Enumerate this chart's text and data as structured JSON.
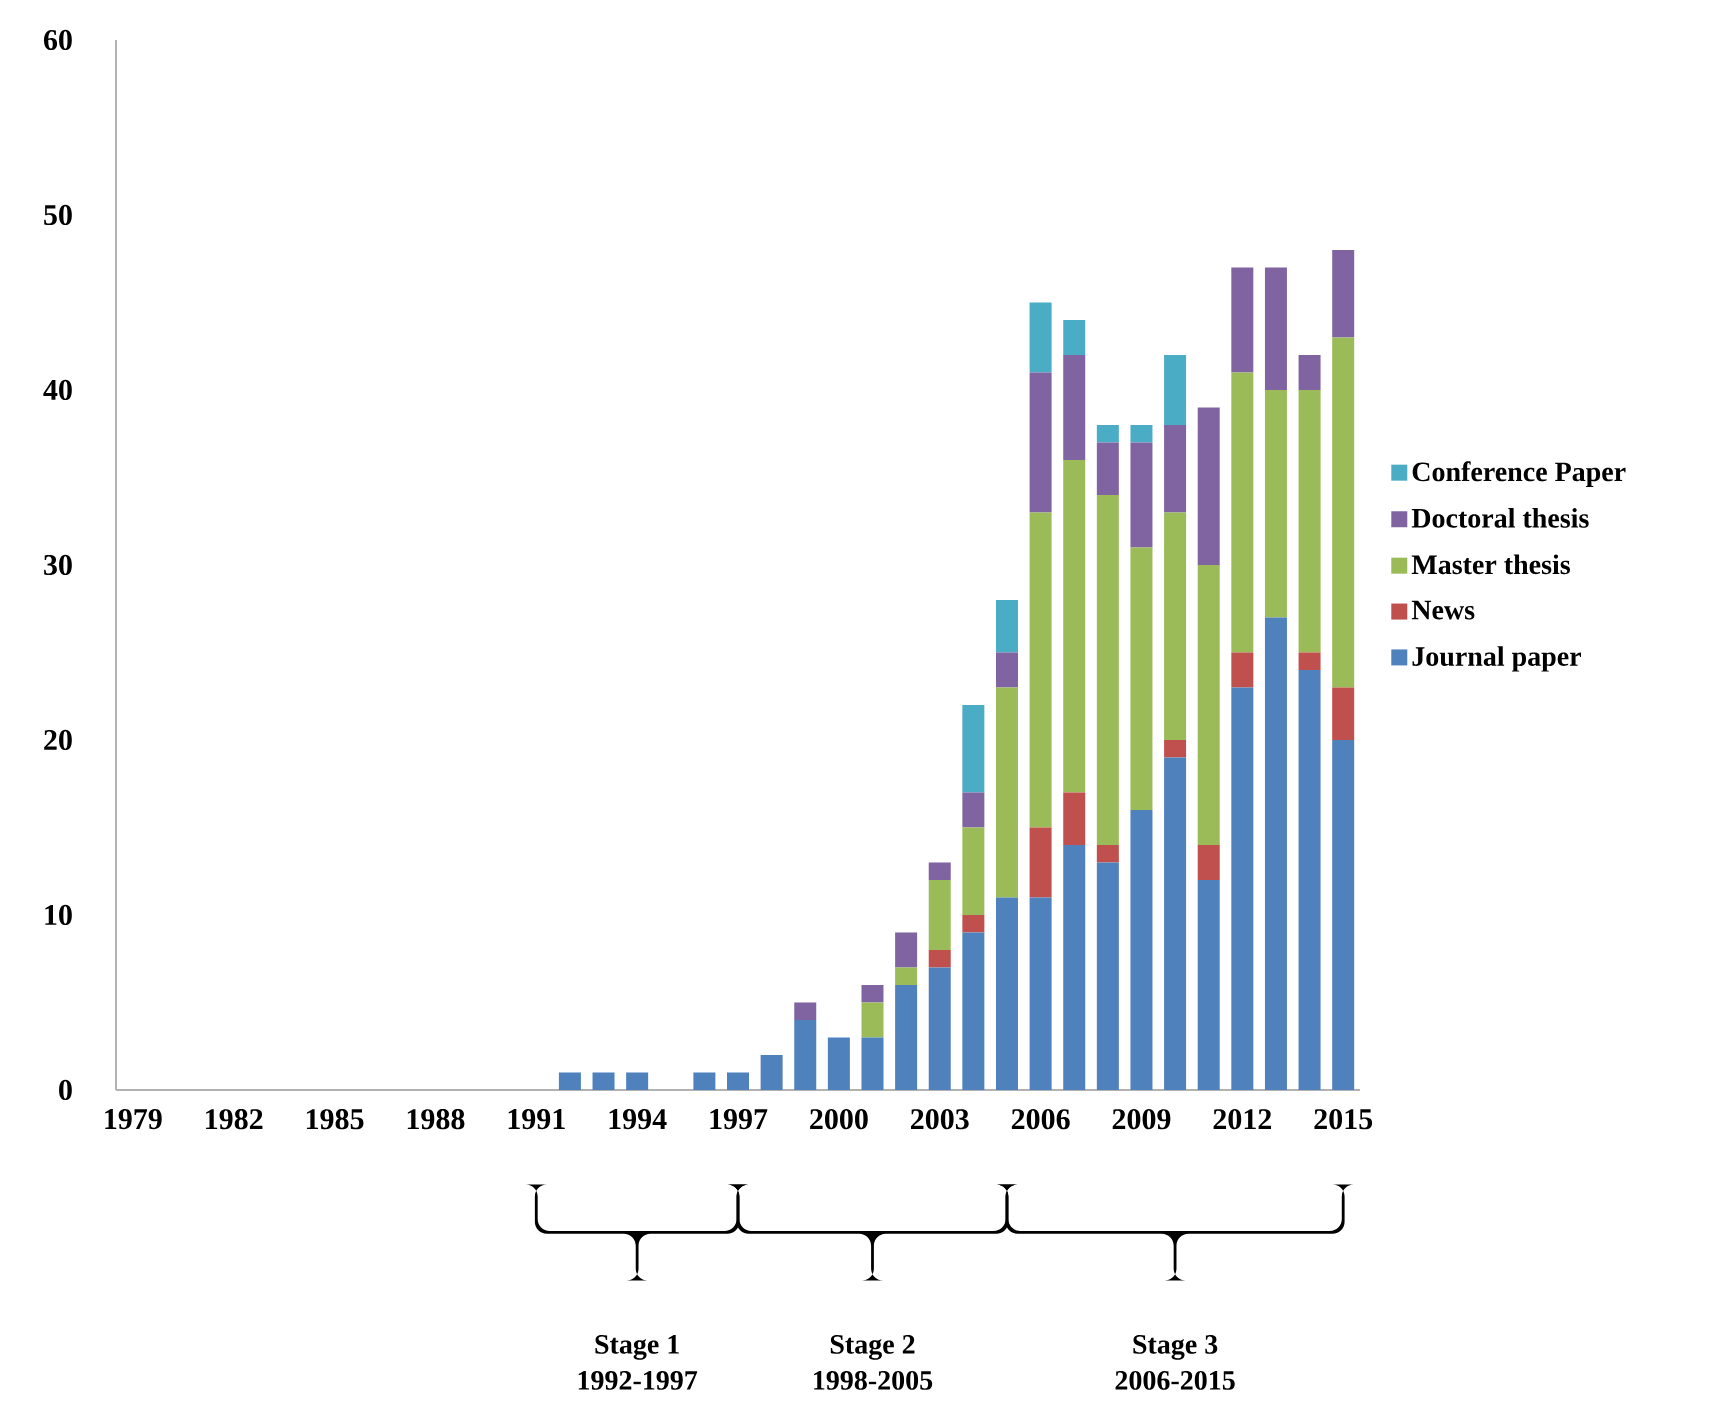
{
  "chart_data": {
    "type": "bar",
    "stacked": true,
    "categories": [
      "1979",
      null,
      null,
      "1982",
      null,
      null,
      "1985",
      null,
      null,
      "1988",
      null,
      null,
      "1991",
      null,
      null,
      "1994",
      null,
      null,
      "1997",
      null,
      null,
      "2000",
      null,
      null,
      "2003",
      null,
      null,
      "2006",
      null,
      null,
      "2009",
      null,
      null,
      "2012",
      null,
      null,
      "2015"
    ],
    "series": [
      {
        "name": "Journal paper",
        "color": "#4f81bd",
        "values": [
          0,
          0,
          0,
          0,
          0,
          0,
          0,
          0,
          0,
          0,
          0,
          0,
          0,
          1,
          1,
          1,
          0,
          1,
          1,
          2,
          4,
          3,
          3,
          6,
          7,
          9,
          11,
          11,
          14,
          13,
          16,
          19,
          12,
          23,
          27,
          24,
          20
        ]
      },
      {
        "name": "News",
        "color": "#c0504d",
        "values": [
          0,
          0,
          0,
          0,
          0,
          0,
          0,
          0,
          0,
          0,
          0,
          0,
          0,
          0,
          0,
          0,
          0,
          0,
          0,
          0,
          0,
          0,
          0,
          0,
          1,
          1,
          0,
          4,
          3,
          1,
          0,
          1,
          2,
          2,
          0,
          1,
          3
        ]
      },
      {
        "name": "Master thesis",
        "color": "#9bbb59",
        "values": [
          0,
          0,
          0,
          0,
          0,
          0,
          0,
          0,
          0,
          0,
          0,
          0,
          0,
          0,
          0,
          0,
          0,
          0,
          0,
          0,
          0,
          0,
          2,
          1,
          4,
          5,
          12,
          18,
          19,
          20,
          15,
          13,
          16,
          16,
          13,
          15,
          20
        ]
      },
      {
        "name": "Doctoral thesis",
        "color": "#8064a2",
        "values": [
          0,
          0,
          0,
          0,
          0,
          0,
          0,
          0,
          0,
          0,
          0,
          0,
          0,
          0,
          0,
          0,
          0,
          0,
          0,
          0,
          1,
          0,
          1,
          2,
          1,
          2,
          2,
          8,
          6,
          3,
          6,
          5,
          9,
          6,
          7,
          2,
          5
        ]
      },
      {
        "name": "Conference Paper",
        "color": "#4bacc6",
        "values": [
          0,
          0,
          0,
          0,
          0,
          0,
          0,
          0,
          0,
          0,
          0,
          0,
          0,
          0,
          0,
          0,
          0,
          0,
          0,
          0,
          0,
          0,
          0,
          0,
          0,
          5,
          3,
          4,
          2,
          1,
          1,
          4,
          0,
          0,
          0,
          0,
          0
        ]
      }
    ],
    "ylim": [
      0,
      60
    ],
    "yticks": [
      0,
      10,
      20,
      30,
      40,
      50,
      60
    ],
    "legend": "right",
    "annotations": [
      "Stage 1",
      "1992-1997",
      "Stage 2",
      "1998-2005",
      "Stage 3",
      "2006-2015"
    ]
  }
}
